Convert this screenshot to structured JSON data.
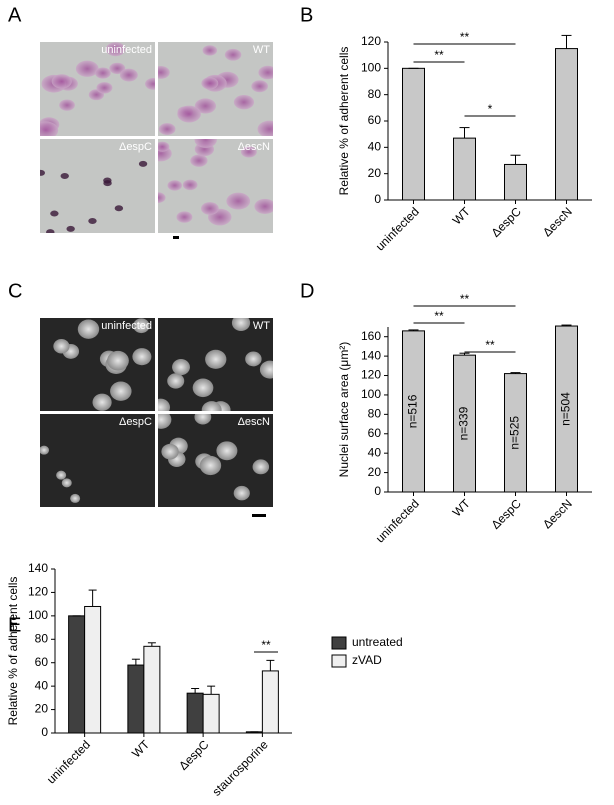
{
  "panels": [
    "A",
    "B",
    "C",
    "D",
    "E"
  ],
  "images": [
    {
      "labels": [
        "uninfected",
        "WT",
        "ΔespC",
        "ΔescN"
      ]
    },
    {
      "labels": [
        "uninfected",
        "WT",
        "ΔespC",
        "ΔescN"
      ]
    }
  ],
  "chart_data": [
    {
      "type": "bar",
      "ylabel": "Relative % of adherent cells",
      "categories": [
        "uninfected",
        "WT",
        "ΔespC",
        "ΔescN"
      ],
      "values": [
        100,
        47,
        27,
        115
      ],
      "errors": [
        0,
        8,
        7,
        10
      ],
      "color": "#c8c8c8",
      "ylim": [
        0,
        120
      ],
      "yticks": [
        0,
        20,
        40,
        60,
        80,
        100,
        120
      ],
      "annotations": [
        "**",
        "**",
        "*"
      ]
    },
    {
      "type": "bar",
      "ylabel": "Nuclei surface area (μm²)",
      "categories": [
        "uninfected",
        "WT",
        "ΔespC",
        "ΔescN"
      ],
      "values": [
        166,
        141,
        122,
        171
      ],
      "errors": [
        1,
        2,
        1,
        1
      ],
      "color": "#c8c8c8",
      "bar_texts": [
        "n=516",
        "n=339",
        "n=525",
        "n=504"
      ],
      "ylim": [
        0,
        170
      ],
      "yticks": [
        0,
        20,
        40,
        60,
        80,
        100,
        120,
        140,
        160
      ],
      "annotations": [
        "**",
        "**",
        "**"
      ]
    },
    {
      "type": "grouped_bar",
      "ylabel": "Relative % of adherent cells",
      "categories": [
        "uninfected",
        "WT",
        "ΔespC",
        "staurosporine"
      ],
      "series": [
        {
          "name": "untreated",
          "color": "#404040",
          "values": [
            100,
            58,
            34,
            1
          ],
          "errors": [
            0,
            5,
            4,
            0
          ]
        },
        {
          "name": "zVAD",
          "color": "#efefef",
          "values": [
            108,
            74,
            33,
            53
          ],
          "errors": [
            14,
            3,
            7,
            9
          ]
        }
      ],
      "ylim": [
        0,
        140
      ],
      "yticks": [
        0,
        20,
        40,
        60,
        80,
        100,
        120,
        140
      ],
      "annotations": [
        "**"
      ]
    }
  ]
}
